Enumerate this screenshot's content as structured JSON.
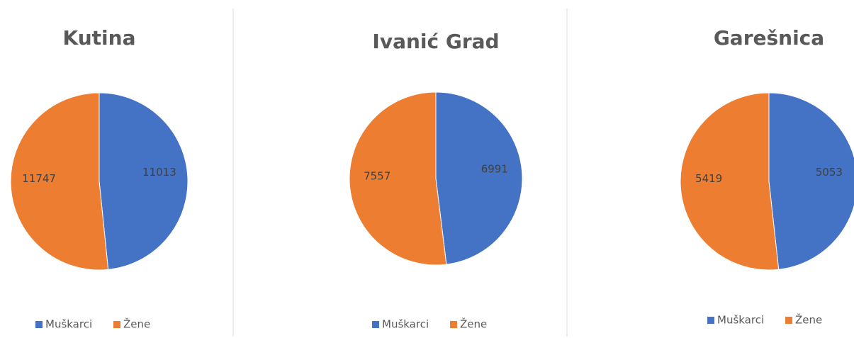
{
  "chart_data": [
    {
      "type": "pie",
      "title": "Kutina",
      "categories": [
        "Muškarci",
        "Žene"
      ],
      "values": [
        11013,
        11747
      ],
      "colors": [
        "#4472c4",
        "#ed7d31"
      ]
    },
    {
      "type": "pie",
      "title": "Ivanić Grad",
      "categories": [
        "Muškarci",
        "Žene"
      ],
      "values": [
        6991,
        7557
      ],
      "colors": [
        "#4472c4",
        "#ed7d31"
      ]
    },
    {
      "type": "pie",
      "title": "Garešnica",
      "categories": [
        "Muškarci",
        "Žene"
      ],
      "values": [
        5053,
        5419
      ],
      "colors": [
        "#4472c4",
        "#ed7d31"
      ]
    }
  ]
}
